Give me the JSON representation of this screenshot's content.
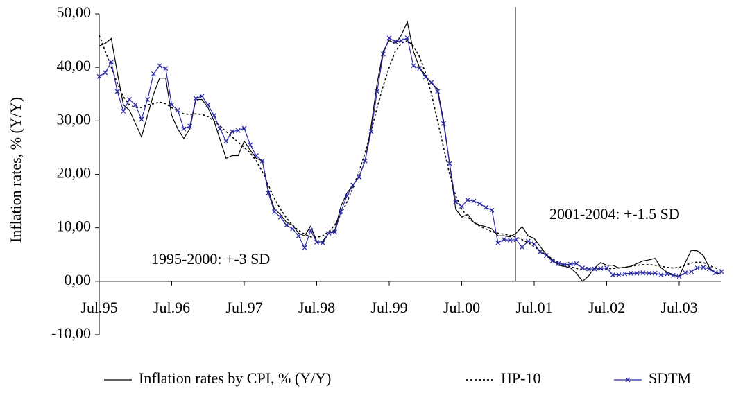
{
  "chart_data": {
    "type": "line",
    "y_label": "Inflation rates, % (Y/Y)",
    "annotations": [
      "1995-2000: +-3 SD",
      "2001-2004: +-1.5 SD"
    ],
    "categories": [
      "Jul.95",
      null,
      null,
      null,
      null,
      null,
      null,
      null,
      null,
      null,
      null,
      null,
      "Jul.96",
      null,
      null,
      null,
      null,
      null,
      null,
      null,
      null,
      null,
      null,
      null,
      "Jul.97",
      null,
      null,
      null,
      null,
      null,
      null,
      null,
      null,
      null,
      null,
      null,
      "Jul.98",
      null,
      null,
      null,
      null,
      null,
      null,
      null,
      null,
      null,
      null,
      null,
      "Jul.99",
      null,
      null,
      null,
      null,
      null,
      null,
      null,
      null,
      null,
      null,
      null,
      "Jul.00",
      null,
      null,
      null,
      null,
      null,
      null,
      null,
      null,
      null,
      null,
      null,
      "Jul.01",
      null,
      null,
      null,
      null,
      null,
      null,
      null,
      null,
      null,
      null,
      null,
      "Jul.02",
      null,
      null,
      null,
      null,
      null,
      null,
      null,
      null,
      null,
      null,
      null,
      "Jul.03",
      null,
      null,
      null,
      null,
      null,
      null,
      null
    ],
    "series": [
      {
        "name": "Inflation rates by CPI, % (Y/Y)",
        "color": "#000000",
        "style": "solid",
        "marker": false,
        "values": [
          44,
          44.5,
          45.4,
          39,
          33,
          32,
          29.5,
          27,
          31,
          35,
          38,
          38,
          31,
          28.5,
          26.7,
          28.5,
          34,
          34,
          32.5,
          30,
          26.5,
          23,
          23.5,
          23.5,
          26.2,
          24.5,
          23,
          22.5,
          17,
          13.5,
          12.5,
          11,
          10.5,
          9,
          8.5,
          10.3,
          7.5,
          7.5,
          9,
          9.5,
          14,
          16.5,
          18,
          19.5,
          22.5,
          29,
          37,
          43,
          45,
          44.5,
          46,
          48.5,
          43,
          40,
          38.5,
          37,
          36,
          30,
          22,
          13.5,
          12,
          12.5,
          11,
          10.5,
          10.2,
          9.8,
          8.5,
          8.5,
          8.3,
          9,
          10.2,
          8.5,
          8,
          6.5,
          5,
          4,
          3,
          2.8,
          2.5,
          1.5,
          0,
          1,
          2.5,
          3.5,
          3,
          3,
          2.5,
          2.6,
          2.8,
          3.3,
          3.8,
          4,
          4.3,
          2.5,
          1.7,
          1.2,
          0.9,
          3.5,
          5.8,
          5.7,
          4.8,
          2.5,
          1.6,
          1.3
        ]
      },
      {
        "name": "HP-10",
        "color": "#000000",
        "style": "dotted",
        "marker": false,
        "values": [
          46,
          43,
          40,
          37,
          34.5,
          33,
          32.5,
          32.5,
          33,
          33.2,
          33.5,
          33.2,
          32.5,
          31.8,
          31.3,
          31.2,
          31.3,
          31.2,
          30.8,
          30,
          29,
          28,
          27,
          26,
          25,
          24,
          22.5,
          20.5,
          18,
          15.5,
          13.5,
          11.8,
          10.5,
          9.5,
          8.8,
          8.3,
          8.2,
          8.5,
          9.3,
          10.5,
          12.5,
          14.8,
          17.5,
          20.5,
          24,
          28,
          32.5,
          36.5,
          40,
          43,
          44.5,
          45,
          44,
          42,
          39,
          35,
          30,
          25,
          20,
          16,
          13.5,
          12,
          11,
          10.3,
          9.8,
          9.3,
          9,
          8.8,
          8.6,
          8.3,
          7.8,
          7.2,
          6.5,
          5.7,
          4.9,
          4.2,
          3.6,
          3.1,
          2.7,
          2.4,
          2.2,
          2.1,
          2.1,
          2.2,
          2.3,
          2.4,
          2.5,
          2.6,
          2.8,
          3,
          3.1,
          3.1,
          3,
          2.8,
          2.6,
          2.5,
          2.6,
          3,
          3.4,
          3.6,
          3.5,
          3,
          2.5,
          2
        ]
      },
      {
        "name": "SDTM",
        "color": "#2a2aa8",
        "style": "solid",
        "marker": true,
        "values": [
          38.3,
          39,
          41,
          35.5,
          31.8,
          34,
          33,
          30.3,
          34,
          38.8,
          40.3,
          39.8,
          33,
          32,
          28.5,
          29,
          34.2,
          34.6,
          33,
          31,
          28.5,
          26.2,
          28,
          28.2,
          28.6,
          25.5,
          23.5,
          22.5,
          16.5,
          13,
          12,
          10.5,
          9.8,
          8.5,
          6.3,
          9.5,
          7.3,
          7.2,
          9,
          9.2,
          13,
          16,
          18,
          19.5,
          22.5,
          28,
          35.5,
          42.5,
          45.5,
          44.8,
          45,
          45.5,
          40.3,
          39.8,
          38.2,
          37.2,
          35.5,
          29.5,
          22,
          14.8,
          14,
          15.2,
          15,
          14.5,
          13.8,
          13.3,
          7.2,
          7.8,
          7.7,
          7.8,
          6.4,
          7.5,
          7,
          5.5,
          4.8,
          3.8,
          3.3,
          3.1,
          3.2,
          3.3,
          2.5,
          2.3,
          2.3,
          2.4,
          2.5,
          1.2,
          1.2,
          1.4,
          1.5,
          1.5,
          1.6,
          1.5,
          1.5,
          1.2,
          1.4,
          1.1,
          0.9,
          1.6,
          1.8,
          2.5,
          2.6,
          2.3,
          1.6,
          1.8
        ]
      }
    ],
    "ylim": [
      -10,
      50
    ],
    "yticks": [
      {
        "value": -10,
        "label": "-10,00"
      },
      {
        "value": 0,
        "label": "0,00"
      },
      {
        "value": 10,
        "label": "10,00"
      },
      {
        "value": 20,
        "label": "20,00"
      },
      {
        "value": 30,
        "label": "30,00"
      },
      {
        "value": 40,
        "label": "40,00"
      },
      {
        "value": 50,
        "label": "50,00"
      }
    ],
    "grid": false,
    "legend": "bottom"
  }
}
